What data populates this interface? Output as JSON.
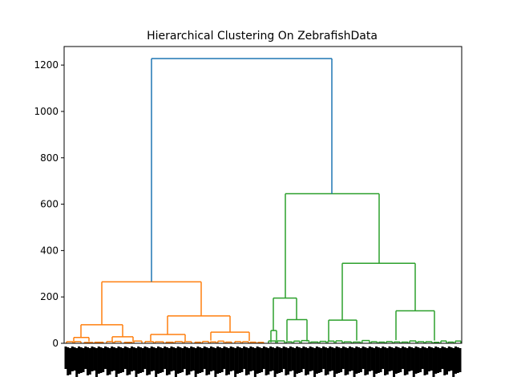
{
  "chart_data": {
    "type": "dendrogram",
    "title": "Hierarchical Clustering On ZebrafishData",
    "xlabel": "",
    "ylabel": "",
    "ylim": [
      0,
      1280
    ],
    "yticks": [
      0,
      200,
      400,
      600,
      800,
      1000,
      1200
    ],
    "grid": false,
    "x_leaf_labels": "dense, overlapping leaf index labels (illegible)",
    "colors": {
      "root": "#1f77b4",
      "cluster_1": "#ff7f0e",
      "cluster_2": "#2ca02c"
    },
    "clusters": [
      {
        "name": "orange",
        "color": "#ff7f0e",
        "merge_height": 265,
        "subclusters": [
          {
            "merge_height": 80,
            "children_heights": [
              25,
              28
            ]
          },
          {
            "merge_height": 118,
            "children_heights": [
              38,
              48
            ]
          }
        ]
      },
      {
        "name": "green",
        "color": "#2ca02c",
        "merge_height": 645,
        "subclusters": [
          {
            "merge_height": 195,
            "children_heights": [
              55,
              102
            ]
          },
          {
            "merge_height": 345,
            "children_heights": [
              100,
              140
            ]
          }
        ]
      }
    ],
    "root_merge_height": 1228
  }
}
